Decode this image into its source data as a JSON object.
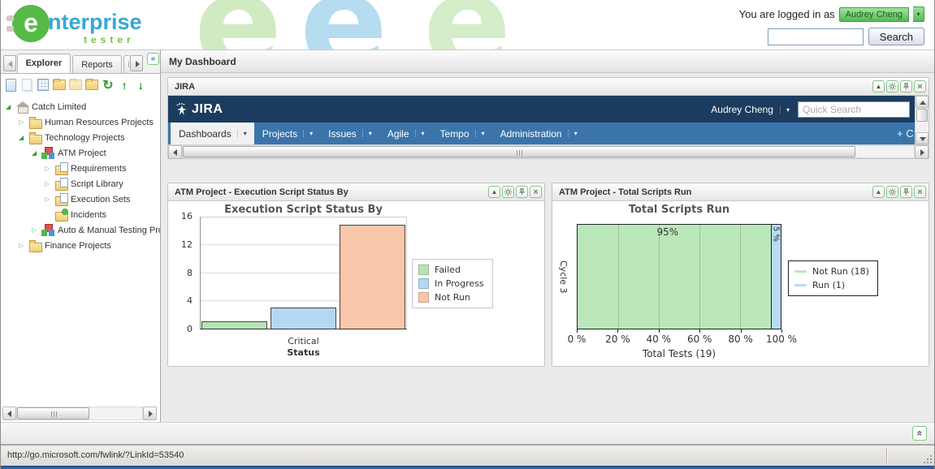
{
  "header": {
    "logo": {
      "brand_initial": "e",
      "brand_rest": "nterprise",
      "sub": "tester"
    },
    "logged_in_label": "You are logged in as",
    "user_name": "Audrey Cheng",
    "search_value": "",
    "search_button": "Search"
  },
  "sidebar": {
    "tabs": [
      {
        "label": "Explorer",
        "active": true
      },
      {
        "label": "Reports",
        "active": false
      },
      {
        "label": "R",
        "active": false
      }
    ],
    "toolbar_icons": [
      "new-document",
      "copy-document",
      "table-document",
      "folder-open",
      "folder-add",
      "folder-move",
      "refresh",
      "move-up",
      "move-down"
    ],
    "tree": [
      {
        "label": "Catch Limited",
        "level": 0,
        "icon": "home",
        "expander": "expanded"
      },
      {
        "label": "Human Resources Projects",
        "level": 1,
        "icon": "folder",
        "expander": "collapsed"
      },
      {
        "label": "Technology Projects",
        "level": 1,
        "icon": "folder",
        "expander": "expanded"
      },
      {
        "label": "ATM Project",
        "level": 2,
        "icon": "project",
        "expander": "expanded"
      },
      {
        "label": "Requirements",
        "level": 3,
        "icon": "folder-doc",
        "expander": "collapsed"
      },
      {
        "label": "Script Library",
        "level": 3,
        "icon": "folder-doc",
        "expander": "collapsed"
      },
      {
        "label": "Execution Sets",
        "level": 3,
        "icon": "folder-doc",
        "expander": "collapsed"
      },
      {
        "label": "Incidents",
        "level": 3,
        "icon": "folder-bug",
        "expander": "none"
      },
      {
        "label": "Auto & Manual Testing Proj",
        "level": 2,
        "icon": "project",
        "expander": "collapsed"
      },
      {
        "label": "Finance Projects",
        "level": 1,
        "icon": "folder",
        "expander": "collapsed"
      }
    ]
  },
  "main": {
    "title": "My Dashboard",
    "status_url": "http://go.microsoft.com/fwlink/?LinkId=53540"
  },
  "jira": {
    "panel_title": "JIRA",
    "logo_text": "JIRA",
    "user_name": "Audrey Cheng",
    "quick_search_placeholder": "Quick Search",
    "nav": [
      {
        "label": "Dashboards",
        "active": true
      },
      {
        "label": "Projects",
        "active": false
      },
      {
        "label": "Issues",
        "active": false
      },
      {
        "label": "Agile",
        "active": false
      },
      {
        "label": "Tempo",
        "active": false
      },
      {
        "label": "Administration",
        "active": false
      }
    ],
    "create_label": "+ C"
  },
  "chart_data": [
    {
      "type": "bar",
      "panel_title": "ATM Project - Execution Script Status By",
      "title": "Execution Script Status By",
      "categories": [
        "Critical"
      ],
      "xlabel": "Status",
      "ylabel": "",
      "ylim": [
        0,
        16
      ],
      "yticks": [
        0,
        4,
        8,
        12,
        16
      ],
      "grid": true,
      "legend_position": "right",
      "series": [
        {
          "name": "Failed",
          "values": [
            1
          ],
          "color": "#b7e3b4"
        },
        {
          "name": "In Progress",
          "values": [
            3
          ],
          "color": "#b5d8f2"
        },
        {
          "name": "Not Run",
          "values": [
            15
          ],
          "color": "#f9c7a9"
        }
      ]
    },
    {
      "type": "stacked-bar-horizontal",
      "panel_title": "ATM Project - Total Scripts Run",
      "title": "Total Scripts Run",
      "categories": [
        "Cycle 3"
      ],
      "xlabel": "Total Tests (19)",
      "xlim": [
        0,
        100
      ],
      "xticks": [
        "0 %",
        "20 %",
        "40 %",
        "60 %",
        "80 %",
        "100 %"
      ],
      "gridline_percents": [
        20,
        40,
        60,
        80
      ],
      "grid": true,
      "legend_position": "right",
      "series": [
        {
          "name": "Not Run (18)",
          "value": 95,
          "label": "95%",
          "color": "#bae7ba"
        },
        {
          "name": "Run (1)",
          "value": 5,
          "label": "5 %",
          "color": "#b6dbf2"
        }
      ]
    }
  ]
}
